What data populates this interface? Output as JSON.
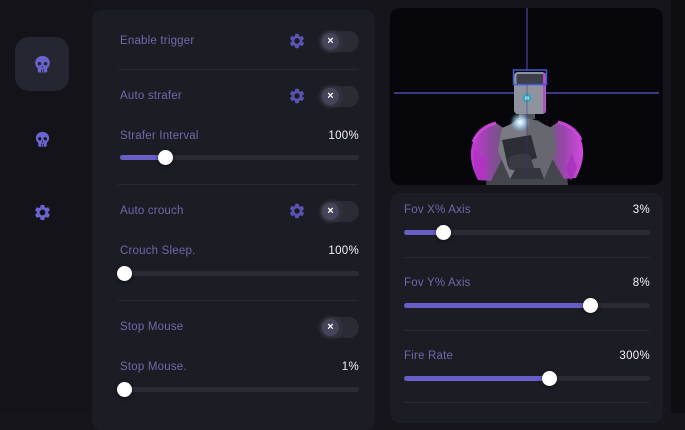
{
  "ui": {
    "toggle_off_glyph": "×"
  },
  "colors": {
    "accent_purple": "#675ec6",
    "icon_purple": "#6b63cf",
    "gear_purple": "#5b53b4",
    "label_text": "#6f68ab",
    "value_text": "#f2f2f5",
    "panel_bg": "#1c1c24",
    "sidebar_bg": "#131319",
    "viewport_bg": "#07070b",
    "crosshair_horizontal": "#5959d4",
    "crosshair_vertical": "#44449e",
    "head_hitbox_border": "#3f58d0",
    "model_rim_magenta": "#c837d8",
    "toggle_bg": "#2b2b36",
    "slider_track": "#2b2b36"
  },
  "sidebar": {
    "items": [
      {
        "id": "combat",
        "icon": "skull-icon",
        "active": true
      },
      {
        "id": "player",
        "icon": "skull-icon",
        "active": false
      },
      {
        "id": "settings",
        "icon": "gear-icon",
        "active": false
      }
    ]
  },
  "middle": {
    "enable_trigger": {
      "label": "Enable trigger",
      "state": "off",
      "has_settings": true
    },
    "auto_strafer": {
      "label": "Auto strafer",
      "state": "off",
      "has_settings": true
    },
    "strafer_interval": {
      "label": "Strafer Interval",
      "value": "100%",
      "position_pct": 19
    },
    "auto_crouch": {
      "label": "Auto crouch",
      "state": "off",
      "has_settings": true
    },
    "crouch_sleep": {
      "label": "Crouch Sleep.",
      "value": "100%",
      "position_pct": 2
    },
    "stop_mouse": {
      "label": "Stop Mouse",
      "state": "off",
      "has_settings": false
    },
    "stop_mouse_interval": {
      "label": "Stop Mouse.",
      "value": "1%",
      "position_pct": 2
    }
  },
  "right": {
    "fov_x": {
      "label": "Fov X% Axis",
      "value": "3%",
      "position_pct": 16
    },
    "fov_y": {
      "label": "Fov Y% Axis",
      "value": "8%",
      "position_pct": 76
    },
    "fire_rate": {
      "label": "Fire Rate",
      "value": "300%",
      "position_pct": 59
    }
  }
}
